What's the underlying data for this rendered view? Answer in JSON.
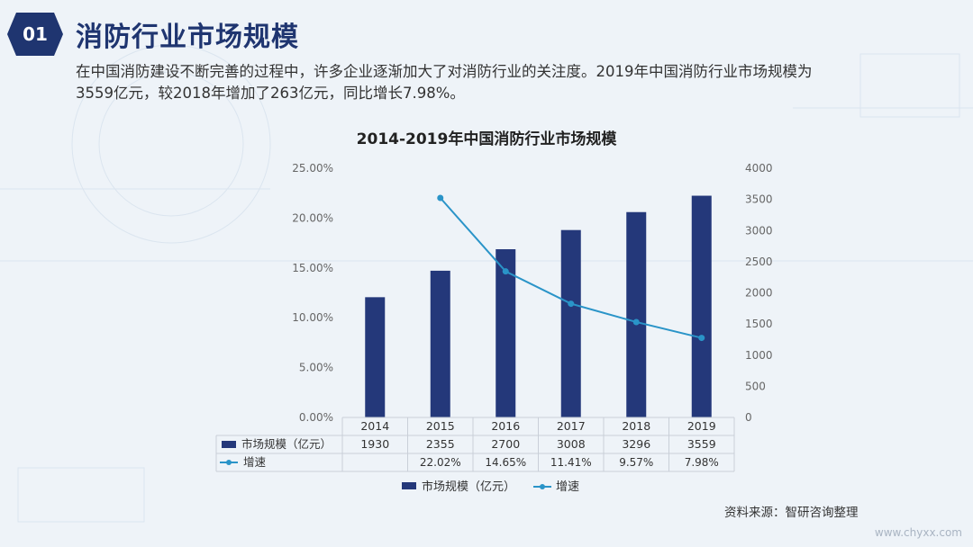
{
  "header": {
    "badge": "01",
    "title": "消防行业市场规模",
    "intro_line1": "在中国消防建设不断完善的过程中，许多企业逐渐加大了对消防行业的关注度。2019年中国消防行业市场规模为",
    "intro_line2": "3559亿元，较2018年增加了263亿元，同比增长7.98%。"
  },
  "chart_data": {
    "type": "bar",
    "title": "2014-2019年中国消防行业市场规模",
    "categories": [
      "2014",
      "2015",
      "2016",
      "2017",
      "2018",
      "2019"
    ],
    "series": [
      {
        "name": "市场规模（亿元）",
        "type": "bar",
        "axis": "right",
        "values": [
          1930,
          2355,
          2700,
          3008,
          3296,
          3559
        ],
        "labels": [
          "1930",
          "2355",
          "2700",
          "3008",
          "3296",
          "3559"
        ]
      },
      {
        "name": "增速",
        "type": "line",
        "axis": "left",
        "values": [
          null,
          22.02,
          14.65,
          11.41,
          9.57,
          7.98
        ],
        "labels": [
          "",
          "22.02%",
          "14.65%",
          "11.41%",
          "9.57%",
          "7.98%"
        ]
      }
    ],
    "left_axis": {
      "ylim": [
        0,
        25
      ],
      "ticks": [
        0,
        5,
        10,
        15,
        20,
        25
      ],
      "tick_labels": [
        "0.00%",
        "5.00%",
        "10.00%",
        "15.00%",
        "20.00%",
        "25.00%"
      ]
    },
    "right_axis": {
      "ylim": [
        0,
        4000
      ],
      "ticks": [
        0,
        500,
        1000,
        1500,
        2000,
        2500,
        3000,
        3500,
        4000
      ],
      "tick_labels": [
        "0",
        "500",
        "1000",
        "1500",
        "2000",
        "2500",
        "3000",
        "3500",
        "4000"
      ]
    },
    "grid": false,
    "data_table": true,
    "legend_position": "bottom",
    "colors": {
      "bar": "#24387a",
      "line": "#2a94c8"
    }
  },
  "footer": {
    "source": "资料来源：智研咨询整理",
    "watermark": "www.chyxx.com"
  }
}
